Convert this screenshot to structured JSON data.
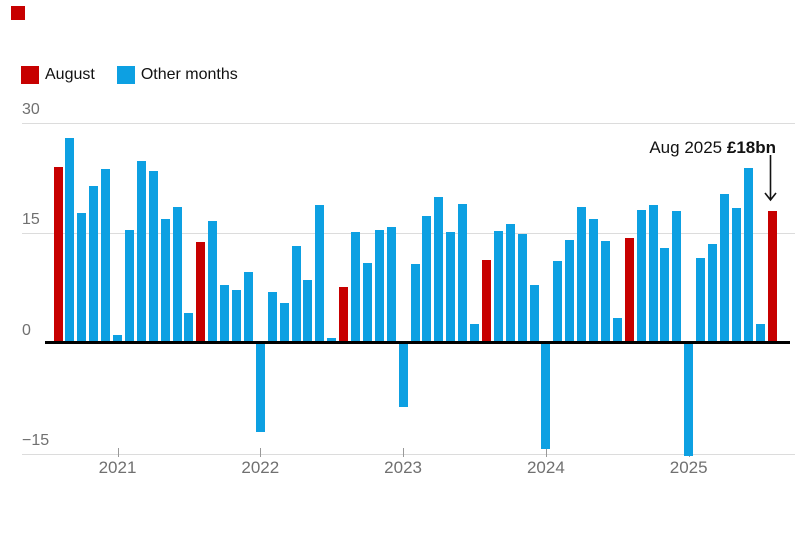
{
  "cursor_marker": {
    "color": "#c70000"
  },
  "chart_data": {
    "type": "bar",
    "legend": [
      {
        "label": "August",
        "color": "#c70000"
      },
      {
        "label": "Other months",
        "color": "#0da0e2"
      }
    ],
    "y_axis": {
      "ticks": [
        30,
        15,
        0,
        -15
      ],
      "range": [
        -17,
        30
      ],
      "grid": true
    },
    "x_axis": {
      "tick_labels": [
        "2021",
        "2022",
        "2023",
        "2024",
        "2025"
      ]
    },
    "annotation": {
      "prefix": "Aug 2025 ",
      "value": "£18bn"
    },
    "colors": {
      "august": "#c70000",
      "other": "#0da0e2",
      "gridline": "#dcdcdc",
      "axis_text": "#707070",
      "zero_line": "#000000"
    },
    "series": [
      {
        "month": "Aug 2020",
        "value": 24.0,
        "august": true
      },
      {
        "month": "Sep 2020",
        "value": 27.9,
        "august": false
      },
      {
        "month": "Oct 2020",
        "value": 17.8,
        "august": false
      },
      {
        "month": "Nov 2020",
        "value": 21.4,
        "august": false
      },
      {
        "month": "Dec 2020",
        "value": 23.8,
        "august": false
      },
      {
        "month": "Jan 2021",
        "value": 1.2,
        "august": false
      },
      {
        "month": "Feb 2021",
        "value": 15.5,
        "august": false
      },
      {
        "month": "Mar 2021",
        "value": 24.8,
        "august": false
      },
      {
        "month": "Apr 2021",
        "value": 23.5,
        "august": false
      },
      {
        "month": "May 2021",
        "value": 17.0,
        "august": false
      },
      {
        "month": "Jun 2021",
        "value": 18.6,
        "august": false
      },
      {
        "month": "Jul 2021",
        "value": 4.2,
        "august": false
      },
      {
        "month": "Aug 2021",
        "value": 13.8,
        "august": true
      },
      {
        "month": "Sep 2021",
        "value": 16.7,
        "august": false
      },
      {
        "month": "Oct 2021",
        "value": 8.0,
        "august": false
      },
      {
        "month": "Nov 2021",
        "value": 7.3,
        "august": false
      },
      {
        "month": "Dec 2021",
        "value": 9.7,
        "august": false
      },
      {
        "month": "Jan 2022",
        "value": -12.0,
        "august": false
      },
      {
        "month": "Feb 2022",
        "value": 7.0,
        "august": false
      },
      {
        "month": "Mar 2022",
        "value": 5.5,
        "august": false
      },
      {
        "month": "Apr 2022",
        "value": 13.3,
        "august": false
      },
      {
        "month": "May 2022",
        "value": 8.6,
        "august": false
      },
      {
        "month": "Jun 2022",
        "value": 18.9,
        "august": false
      },
      {
        "month": "Jul 2022",
        "value": 0.7,
        "august": false
      },
      {
        "month": "Aug 2022",
        "value": 7.7,
        "august": true
      },
      {
        "month": "Sep 2022",
        "value": 15.2,
        "august": false
      },
      {
        "month": "Oct 2022",
        "value": 11.0,
        "august": false
      },
      {
        "month": "Nov 2022",
        "value": 15.4,
        "august": false
      },
      {
        "month": "Dec 2022",
        "value": 15.8,
        "august": false
      },
      {
        "month": "Jan 2023",
        "value": -8.7,
        "august": false
      },
      {
        "month": "Feb 2023",
        "value": 10.8,
        "august": false
      },
      {
        "month": "Mar 2023",
        "value": 17.4,
        "august": false
      },
      {
        "month": "Apr 2023",
        "value": 19.9,
        "august": false
      },
      {
        "month": "May 2023",
        "value": 15.2,
        "august": false
      },
      {
        "month": "Jun 2023",
        "value": 19.0,
        "august": false
      },
      {
        "month": "Jul 2023",
        "value": 2.6,
        "august": false
      },
      {
        "month": "Aug 2023",
        "value": 11.3,
        "august": true
      },
      {
        "month": "Sep 2023",
        "value": 15.3,
        "august": false
      },
      {
        "month": "Oct 2023",
        "value": 16.3,
        "august": false
      },
      {
        "month": "Nov 2023",
        "value": 14.9,
        "august": false
      },
      {
        "month": "Dec 2023",
        "value": 8.0,
        "august": false
      },
      {
        "month": "Jan 2024",
        "value": -14.4,
        "august": false
      },
      {
        "month": "Feb 2024",
        "value": 11.2,
        "august": false
      },
      {
        "month": "Mar 2024",
        "value": 14.1,
        "august": false
      },
      {
        "month": "Apr 2024",
        "value": 18.6,
        "august": false
      },
      {
        "month": "May 2024",
        "value": 16.9,
        "august": false
      },
      {
        "month": "Jun 2024",
        "value": 14.0,
        "august": false
      },
      {
        "month": "Jul 2024",
        "value": 3.5,
        "august": false
      },
      {
        "month": "Aug 2024",
        "value": 14.3,
        "august": true
      },
      {
        "month": "Sep 2024",
        "value": 18.2,
        "august": false
      },
      {
        "month": "Oct 2024",
        "value": 18.8,
        "august": false
      },
      {
        "month": "Nov 2024",
        "value": 13.0,
        "august": false
      },
      {
        "month": "Dec 2024",
        "value": 18.0,
        "august": false
      },
      {
        "month": "Jan 2025",
        "value": -15.3,
        "august": false
      },
      {
        "month": "Feb 2025",
        "value": 11.6,
        "august": false
      },
      {
        "month": "Mar 2025",
        "value": 13.6,
        "august": false
      },
      {
        "month": "Apr 2025",
        "value": 20.4,
        "august": false
      },
      {
        "month": "May 2025",
        "value": 18.4,
        "august": false
      },
      {
        "month": "Jun 2025",
        "value": 23.9,
        "august": false
      },
      {
        "month": "Jul 2025",
        "value": 2.7,
        "august": false
      },
      {
        "month": "Aug 2025",
        "value": 18.0,
        "august": true
      }
    ]
  }
}
